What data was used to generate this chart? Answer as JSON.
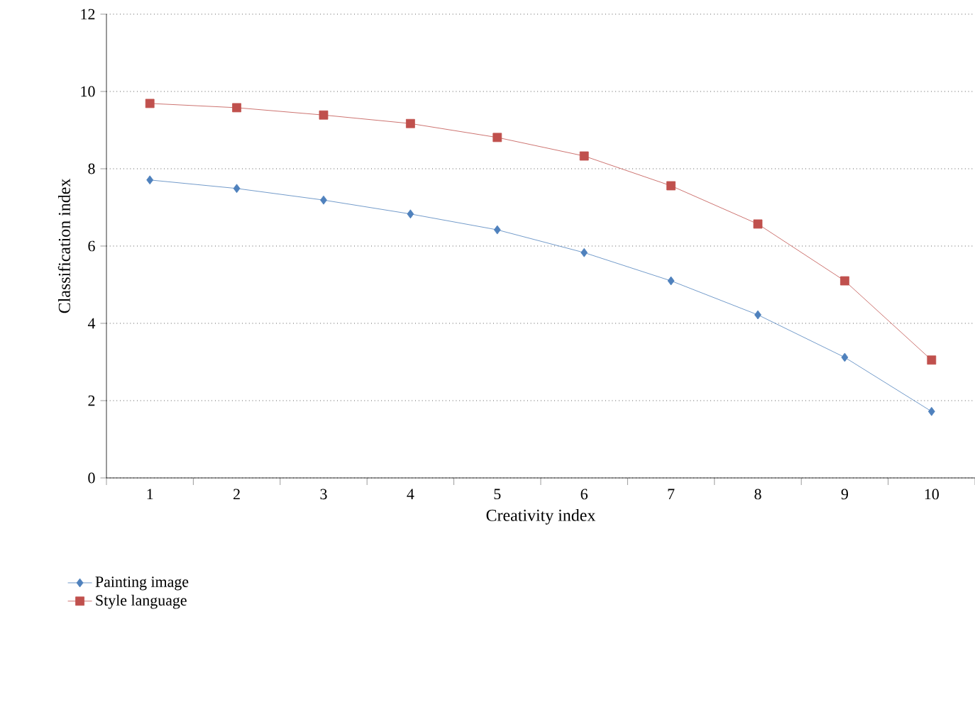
{
  "chart_data": {
    "type": "line",
    "xlabel": "Creativity index",
    "ylabel": "Classification index",
    "categories": [
      "1",
      "2",
      "3",
      "4",
      "5",
      "6",
      "7",
      "8",
      "9",
      "10"
    ],
    "series": [
      {
        "name": "Painting image",
        "color": "#4f81bd",
        "marker": "diamond",
        "values": [
          7.71,
          7.49,
          7.19,
          6.83,
          6.42,
          5.83,
          5.1,
          4.22,
          3.12,
          1.72
        ]
      },
      {
        "name": "Style language",
        "color": "#c0504d",
        "marker": "square",
        "values": [
          9.69,
          9.58,
          9.39,
          9.17,
          8.81,
          8.33,
          7.56,
          6.57,
          5.1,
          3.05
        ]
      }
    ],
    "ylim": [
      0,
      12
    ],
    "yticks": [
      0,
      2,
      4,
      6,
      8,
      10,
      12
    ],
    "grid": "y",
    "legend": "bottom left",
    "line_style": "solid"
  }
}
